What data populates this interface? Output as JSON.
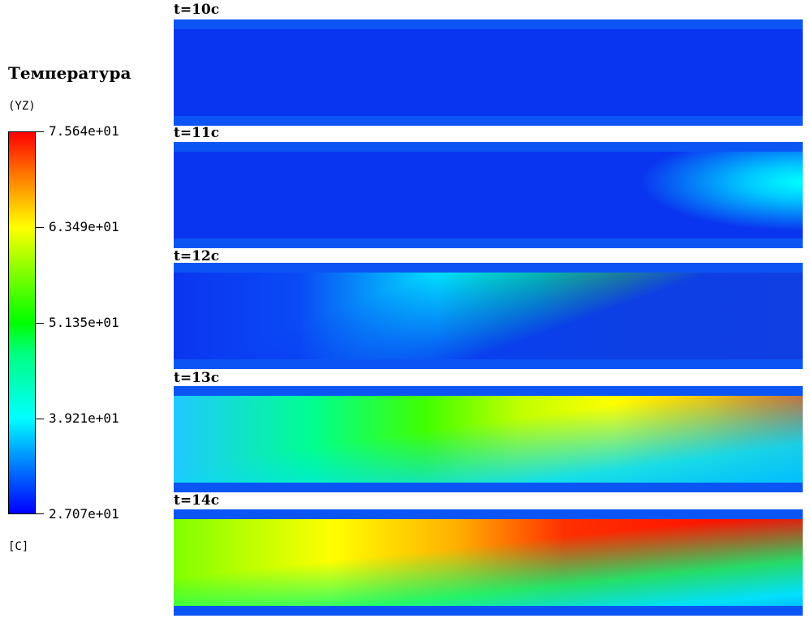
{
  "legend": {
    "title": "Температура",
    "subtitle": "(YZ)",
    "unit": "[C]",
    "ticks": [
      "7.564e+01",
      "6.349e+01",
      "5.135e+01",
      "3.921e+01",
      "2.707e+01"
    ],
    "max": 75.64,
    "min": 27.07
  },
  "panels": [
    {
      "label": "t=10c"
    },
    {
      "label": "t=11c"
    },
    {
      "label": "t=12c"
    },
    {
      "label": "t=13c"
    },
    {
      "label": "t=14c"
    }
  ],
  "colors": {
    "low": "#0000ff",
    "mid": "#00ff00",
    "high": "#ff0000"
  }
}
